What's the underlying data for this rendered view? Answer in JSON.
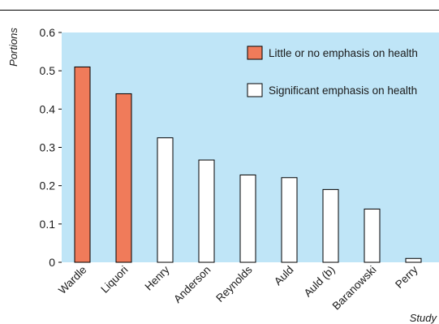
{
  "chart_data": {
    "type": "bar",
    "title": "",
    "xlabel": "Study",
    "ylabel": "Portions",
    "ylim": [
      0,
      0.6
    ],
    "yticks": [
      "0",
      "0.1",
      "0.2",
      "0.3",
      "0.4",
      "0.5",
      "0.6"
    ],
    "categories": [
      "Wardle",
      "Liquori",
      "Henry",
      "Anderson",
      "Reynolds",
      "Auld",
      "Auld (b)",
      "Baranowski",
      "Perry"
    ],
    "values": [
      0.51,
      0.44,
      0.325,
      0.267,
      0.228,
      0.221,
      0.19,
      0.139,
      0.01
    ],
    "groups": [
      "little",
      "little",
      "significant",
      "significant",
      "significant",
      "significant",
      "significant",
      "significant",
      "significant"
    ],
    "legend": {
      "position": "top-right",
      "items": [
        {
          "key": "little",
          "label": "Little or no emphasis on health",
          "color": "#f07b5a"
        },
        {
          "key": "significant",
          "label": "Significant emphasis on health",
          "color": "#ffffff"
        }
      ]
    },
    "colors": {
      "plot_background": "#bfe5f7",
      "bar_outline": "#000000"
    },
    "grid": false
  }
}
